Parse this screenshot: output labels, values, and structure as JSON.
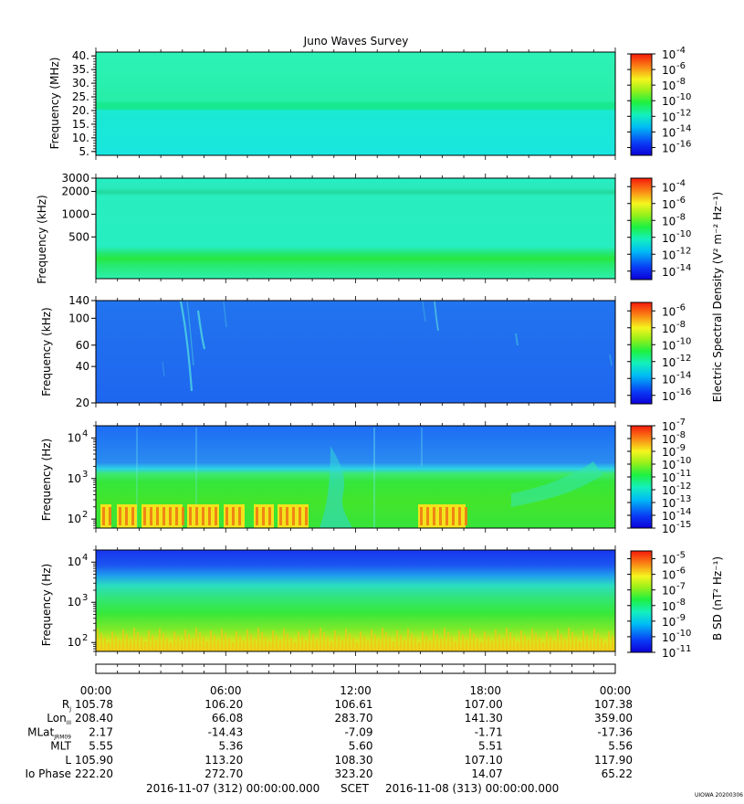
{
  "title": "Juno Waves Survey",
  "chart_data": [
    {
      "type": "heatmap",
      "panel": "HFR high",
      "ylabel": "Frequency (MHz)",
      "yticks": [
        "40.",
        "35.",
        "30.",
        "25.",
        "20.",
        "15.",
        "10.",
        "5."
      ],
      "ylim": [
        3.6,
        41.4
      ],
      "colorbar_ticks": [
        "-4",
        "-6",
        "-8",
        "-10",
        "-12",
        "-14",
        "-16"
      ],
      "colorbar_range": [
        -17,
        -4
      ],
      "colors": [
        "#2cf2b7",
        "#17e8d8",
        "#18ef8a"
      ]
    },
    {
      "type": "heatmap",
      "panel": "HFR low",
      "ylabel": "Frequency (kHz)",
      "yticks": [
        "3000",
        "2000",
        "1000",
        "500"
      ],
      "ylim": [
        140,
        3000
      ],
      "colorbar_ticks": [
        "-4",
        "-6",
        "-8",
        "-10",
        "-12",
        "-14"
      ],
      "colorbar_range": [
        -15,
        -3
      ],
      "colors": [
        "#28edc2",
        "#22d89d",
        "#27ea52"
      ]
    },
    {
      "type": "heatmap",
      "panel": "LFR high",
      "ylabel": "Frequency (kHz)",
      "yticks": [
        "140",
        "100",
        "60",
        "40",
        "20"
      ],
      "ylim": [
        20,
        140
      ],
      "colorbar_ticks": [
        "-6",
        "-8",
        "-10",
        "-12",
        "-14",
        "-16"
      ],
      "colorbar_range": [
        -17,
        -5
      ],
      "colors": [
        "#1e6cf0",
        "#3fc8e8"
      ]
    },
    {
      "type": "heatmap",
      "panel": "LFR electric",
      "ylabel": "Frequency (Hz)",
      "ylim": [
        60,
        20000
      ],
      "colorbar_ticks": [
        "-7",
        "-8",
        "-9",
        "-10",
        "-11",
        "-12",
        "-13",
        "-14",
        "-15"
      ],
      "colorbar_range": [
        -15,
        -7
      ],
      "colors": [
        "#1f78f2",
        "#2ce9ce",
        "#27e83b",
        "#f2c418",
        "#f06a12"
      ]
    },
    {
      "type": "heatmap",
      "panel": "LFR magnetic",
      "ylabel": "Frequency (Hz)",
      "ylim": [
        60,
        20000
      ],
      "colorbar_ticks": [
        "-5",
        "-6",
        "-7",
        "-8",
        "-9",
        "-10",
        "-11"
      ],
      "colorbar_range": [
        -11,
        -4.5
      ],
      "colors": [
        "#1a3ef0",
        "#21a9ef",
        "#2ce0b8",
        "#34e83a",
        "#f2e419"
      ]
    }
  ],
  "colorbar_labels": {
    "electric": "Electric Spectral Density (V² m⁻² Hz⁻¹)",
    "magnetic": "B SD (nT² Hz⁻¹)"
  },
  "colorbar_base": "10",
  "x_axis": {
    "ticks": [
      "00:00",
      "06:00",
      "12:00",
      "18:00",
      "00:00"
    ],
    "rows": [
      {
        "label": "R",
        "sub": "J",
        "values": [
          "105.78",
          "106.20",
          "106.61",
          "107.00",
          "107.38"
        ]
      },
      {
        "label": "Lon",
        "sub": "III",
        "values": [
          "208.40",
          "66.08",
          "283.70",
          "141.30",
          "359.00"
        ]
      },
      {
        "label": "MLat",
        "sub": "JRM09",
        "values": [
          "2.17",
          "-14.43",
          "-7.09",
          "-1.71",
          "-17.36"
        ]
      },
      {
        "label": "MLT",
        "sub": "",
        "values": [
          "5.55",
          "5.36",
          "5.60",
          "5.51",
          "5.56"
        ]
      },
      {
        "label": "L",
        "sub": "",
        "values": [
          "105.90",
          "113.20",
          "108.30",
          "107.10",
          "117.90"
        ]
      },
      {
        "label": "Io Phase",
        "sub": "",
        "values": [
          "222.20",
          "272.70",
          "323.20",
          "14.07",
          "65.22"
        ]
      }
    ]
  },
  "footer": {
    "start": "2016-11-07 (312) 00:00:00.000",
    "scet": "SCET",
    "end": "2016-11-08 (313) 00:00:00.000",
    "stamp": "UIOWA 20200306"
  }
}
